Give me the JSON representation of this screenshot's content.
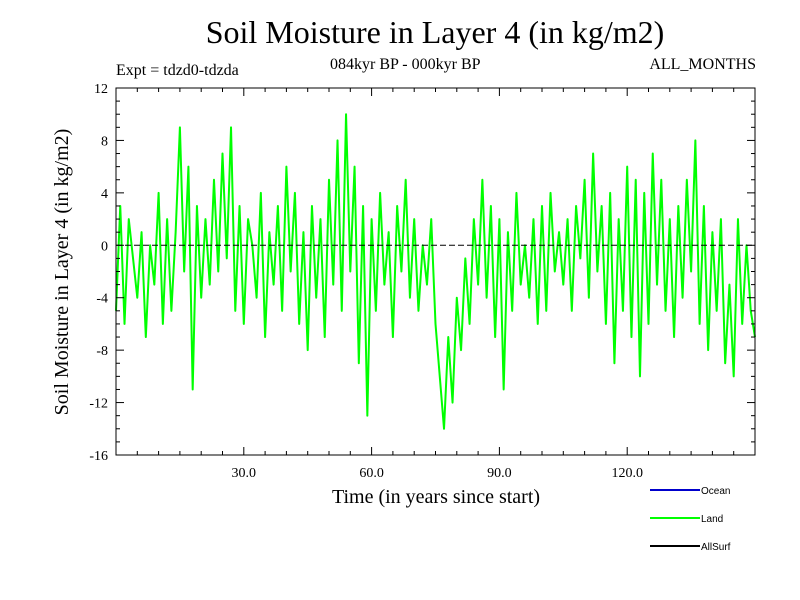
{
  "header": {
    "title": "Soil Moisture in Layer 4 (in kg/m2)",
    "subtitle": "084kyr BP - 000kyr BP",
    "expt": "Expt = tdzd0-tdzda",
    "months": "ALL_MONTHS"
  },
  "chart_data": {
    "type": "line",
    "title": "Soil Moisture in Layer 4 (in kg/m2)",
    "xlabel": "Time (in years since start)",
    "ylabel": "Soil Moisture in Layer 4 (in kg/m2)",
    "xlim": [
      0,
      150
    ],
    "ylim": [
      -16,
      12
    ],
    "x_ticks": [
      30,
      60,
      90,
      120
    ],
    "x_tick_labels": [
      "30.0",
      "60.0",
      "90.0",
      "120.0"
    ],
    "y_ticks": [
      12,
      8,
      4,
      0,
      -4,
      -8,
      -12,
      -16
    ],
    "y_tick_labels": [
      "12",
      "8",
      "4",
      "0",
      "-4",
      "-8",
      "-12",
      "-16"
    ],
    "zero_line": true,
    "legend": [
      "Ocean",
      "Land",
      "AllSurf"
    ],
    "series": [
      {
        "name": "Ocean",
        "color": "#0000cc",
        "values": []
      },
      {
        "name": "Land",
        "color": "#00ff00",
        "x_start": 0,
        "x_step": 1,
        "values": [
          -5,
          3,
          -6,
          2,
          -1,
          -4,
          1,
          -7,
          0,
          -3,
          4,
          -6,
          2,
          -5,
          1,
          9,
          -2,
          6,
          -11,
          3,
          -4,
          2,
          -3,
          5,
          -2,
          7,
          -1,
          9,
          -5,
          3,
          -6,
          2,
          0,
          -4,
          4,
          -7,
          1,
          -3,
          3,
          -5,
          6,
          -2,
          4,
          -6,
          1,
          -8,
          3,
          -4,
          2,
          -7,
          5,
          -3,
          8,
          -5,
          10,
          -2,
          6,
          -9,
          3,
          -13,
          2,
          -5,
          4,
          -3,
          1,
          -7,
          3,
          -2,
          5,
          -4,
          2,
          -5,
          0,
          -3,
          2,
          -6,
          -10,
          -14,
          -7,
          -12,
          -4,
          -8,
          -1,
          -6,
          2,
          -3,
          5,
          -4,
          3,
          -7,
          2,
          -11,
          1,
          -5,
          4,
          -3,
          0,
          -4,
          2,
          -6,
          3,
          -5,
          4,
          -2,
          1,
          -3,
          2,
          -5,
          3,
          -1,
          5,
          -4,
          7,
          -2,
          3,
          -6,
          4,
          -9,
          2,
          -5,
          6,
          -7,
          5,
          -10,
          4,
          -6,
          7,
          -3,
          5,
          -5,
          2,
          -7,
          3,
          -4,
          5,
          -2,
          8,
          -6,
          3,
          -8,
          1,
          -5,
          2,
          -9,
          -3,
          -10,
          2,
          -6,
          0,
          -5,
          -7
        ]
      },
      {
        "name": "AllSurf",
        "color": "#000000",
        "values": []
      }
    ]
  }
}
